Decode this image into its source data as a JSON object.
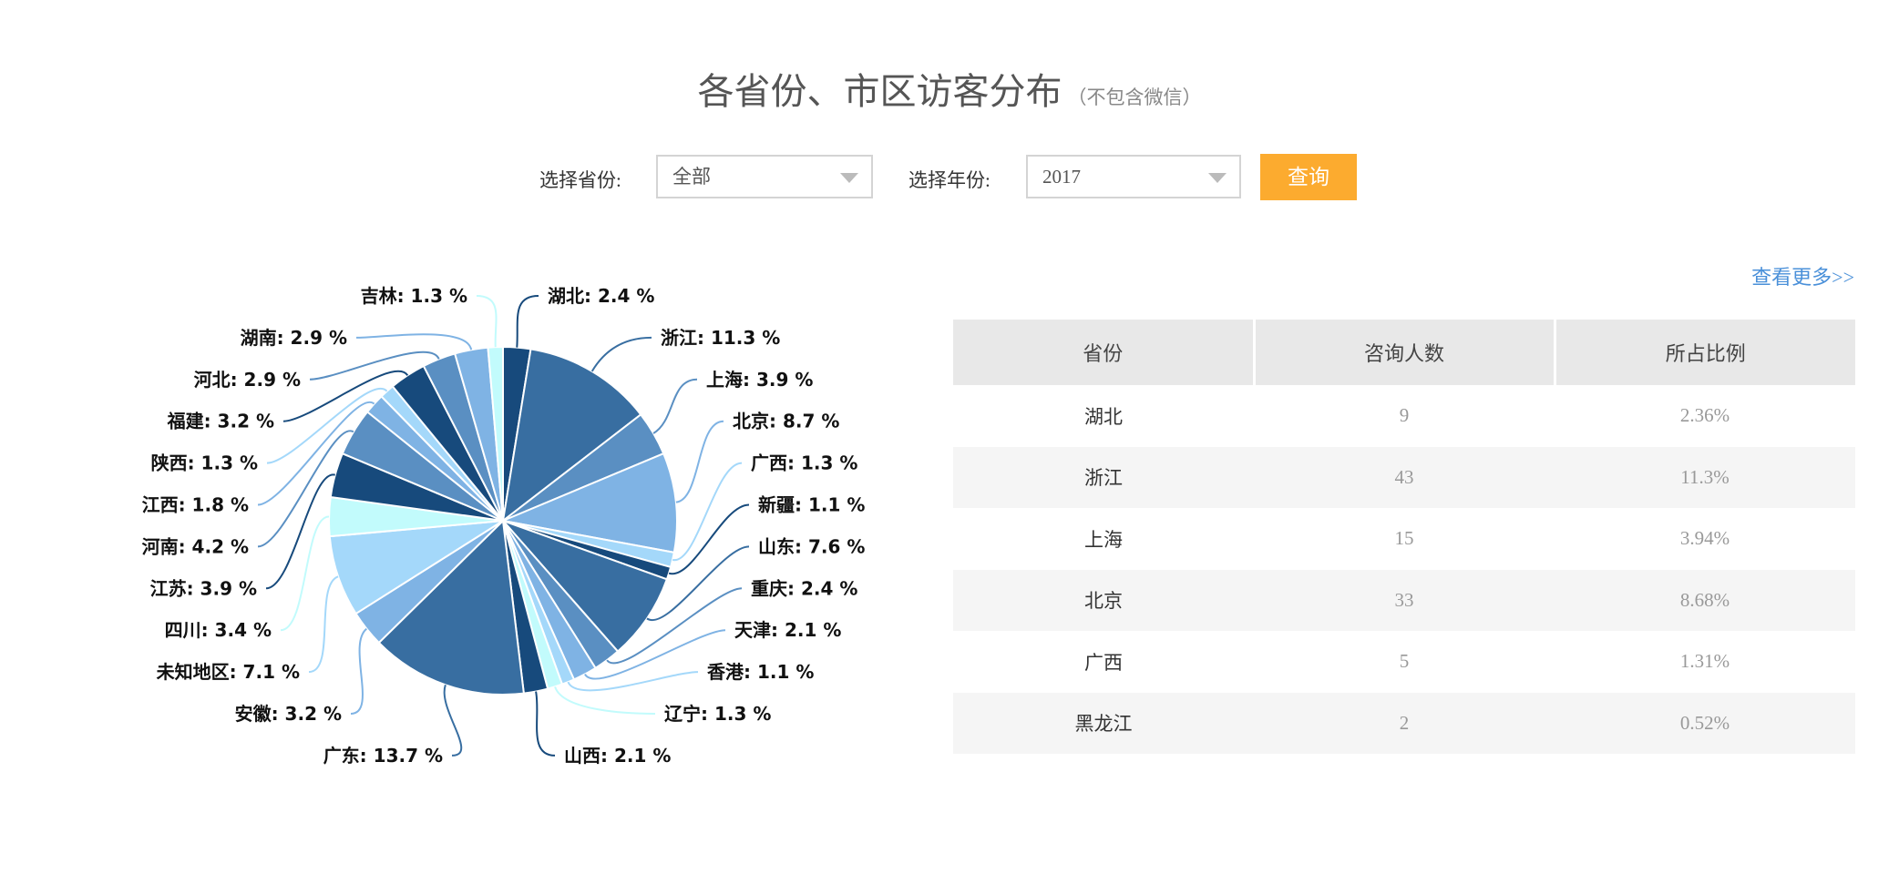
{
  "header": {
    "title": "各省份、市区访客分布",
    "subtitle": "（不包含微信）"
  },
  "filters": {
    "province_label": "选择省份:",
    "province_value": "全部",
    "year_label": "选择年份:",
    "year_value": "2017",
    "query_button": "查询"
  },
  "more_link": "查看更多>>",
  "table": {
    "columns": [
      "省份",
      "咨询人数",
      "所占比例"
    ],
    "rows": [
      [
        "湖北",
        "9",
        "2.36%"
      ],
      [
        "浙江",
        "43",
        "11.3%"
      ],
      [
        "上海",
        "15",
        "3.94%"
      ],
      [
        "北京",
        "33",
        "8.68%"
      ],
      [
        "广西",
        "5",
        "1.31%"
      ],
      [
        "黑龙江",
        "2",
        "0.52%"
      ]
    ]
  },
  "chart_data": {
    "type": "pie",
    "unit": "%",
    "slices": [
      {
        "name": "湖北",
        "value": 2.4,
        "color": "#174a7c"
      },
      {
        "name": "浙江",
        "value": 11.3,
        "color": "#386ea1"
      },
      {
        "name": "上海",
        "value": 3.9,
        "color": "#5a8fc2"
      },
      {
        "name": "北京",
        "value": 8.7,
        "color": "#7fb3e4"
      },
      {
        "name": "广西",
        "value": 1.3,
        "color": "#a4d8fa"
      },
      {
        "name": "新疆",
        "value": 1.1,
        "color": "#174a7c"
      },
      {
        "name": "山东",
        "value": 7.6,
        "color": "#386ea1"
      },
      {
        "name": "重庆",
        "value": 2.4,
        "color": "#5a8fc2"
      },
      {
        "name": "天津",
        "value": 2.1,
        "color": "#7fb3e4"
      },
      {
        "name": "香港",
        "value": 1.1,
        "color": "#a4d8fa"
      },
      {
        "name": "辽宁",
        "value": 1.3,
        "color": "#c2fbfc"
      },
      {
        "name": "山西",
        "value": 2.1,
        "color": "#174a7c"
      },
      {
        "name": "广东",
        "value": 13.7,
        "color": "#386ea1"
      },
      {
        "name": "安徽",
        "value": 3.2,
        "color": "#7fb3e4"
      },
      {
        "name": "未知地区",
        "value": 7.1,
        "color": "#a4d8fa"
      },
      {
        "name": "四川",
        "value": 3.4,
        "color": "#c2fbfc"
      },
      {
        "name": "江苏",
        "value": 3.9,
        "color": "#174a7c"
      },
      {
        "name": "河南",
        "value": 4.2,
        "color": "#5a8fc2"
      },
      {
        "name": "江西",
        "value": 1.8,
        "color": "#7fb3e4"
      },
      {
        "name": "陕西",
        "value": 1.3,
        "color": "#a4d8fa"
      },
      {
        "name": "福建",
        "value": 3.2,
        "color": "#174a7c"
      },
      {
        "name": "河北",
        "value": 2.9,
        "color": "#5a8fc2"
      },
      {
        "name": "湖南",
        "value": 2.9,
        "color": "#7fb3e4"
      },
      {
        "name": "吉林",
        "value": 1.3,
        "color": "#c2fbfc"
      }
    ]
  }
}
